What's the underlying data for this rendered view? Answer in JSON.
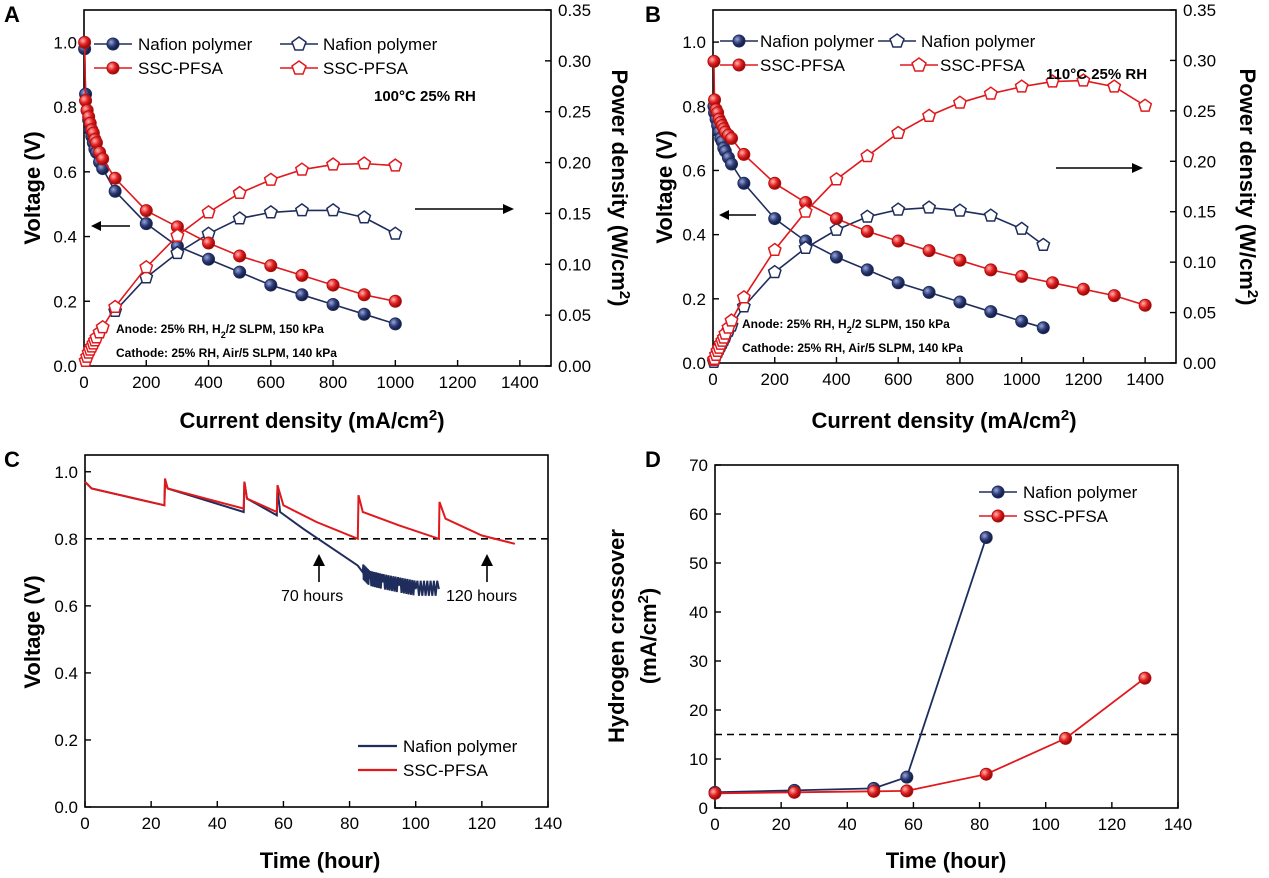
{
  "colors": {
    "nafion": "#1f2d5c",
    "ssc": "#e0191d",
    "axis": "#000000"
  },
  "panels": {
    "A": {
      "letter": "A",
      "condition": "100°C 25% RH",
      "anode": {
        "pre": "Anode: 25% RH, H",
        "sub": "2",
        "post": "/2 SLPM, 150 kPa"
      },
      "cathode": "Cathode: 25% RH, Air/5 SLPM, 140 kPa",
      "legend": [
        "Nafion polymer",
        "Nafion polymer",
        "SSC-PFSA",
        "SSC-PFSA"
      ]
    },
    "B": {
      "letter": "B",
      "condition": "110°C 25% RH",
      "anode": {
        "pre": "Anode: 25% RH, H",
        "sub": "2",
        "post": "/2 SLPM, 150 kPa"
      },
      "cathode": "Cathode: 25% RH, Air/5 SLPM, 140 kPa",
      "legend": [
        "Nafion polymer",
        "Nafion polymer",
        "SSC-PFSA",
        "SSC-PFSA"
      ]
    },
    "C": {
      "letter": "C",
      "annot70": "70 hours",
      "annot120": "120 hours",
      "legend": [
        "Nafion polymer",
        "SSC-PFSA"
      ]
    },
    "D": {
      "letter": "D",
      "legend": [
        "Nafion polymer",
        "SSC-PFSA"
      ]
    }
  },
  "chart_data": [
    {
      "panel": "A",
      "type": "line",
      "condition": "100°C 25% RH",
      "xlabel": "Current density (mA/cm2)",
      "ylabel_left": "Voltage (V)",
      "ylabel_right": "Power density (W/cm2)",
      "xlim": [
        0,
        1500
      ],
      "ylim_left": [
        0,
        1.1
      ],
      "ylim_right": [
        0,
        0.35
      ],
      "x_ticks": [
        0,
        200,
        400,
        600,
        800,
        1000,
        1200,
        1400
      ],
      "y_ticks_left": [
        0.0,
        0.2,
        0.4,
        0.6,
        0.8,
        1.0
      ],
      "y_ticks_right": [
        0.0,
        0.05,
        0.1,
        0.15,
        0.2,
        0.25,
        0.3,
        0.35
      ],
      "series": [
        {
          "name": "Nafion polymer",
          "quantity": "voltage",
          "axis": "left",
          "marker": "circle",
          "x": [
            2,
            5,
            10,
            15,
            20,
            25,
            30,
            35,
            40,
            50,
            60,
            100,
            200,
            300,
            400,
            500,
            600,
            700,
            800,
            900,
            1000
          ],
          "y": [
            0.98,
            0.84,
            0.79,
            0.76,
            0.73,
            0.71,
            0.69,
            0.67,
            0.66,
            0.63,
            0.61,
            0.54,
            0.44,
            0.37,
            0.33,
            0.29,
            0.25,
            0.22,
            0.19,
            0.16,
            0.13
          ]
        },
        {
          "name": "Nafion polymer",
          "quantity": "power",
          "axis": "right",
          "marker": "pentagon",
          "x": [
            100,
            200,
            300,
            400,
            500,
            600,
            700,
            800,
            900,
            1000
          ],
          "y": [
            0.054,
            0.087,
            0.111,
            0.13,
            0.145,
            0.151,
            0.153,
            0.153,
            0.146,
            0.13
          ]
        },
        {
          "name": "SSC-PFSA",
          "quantity": "voltage",
          "axis": "left",
          "marker": "circle",
          "x": [
            2,
            5,
            10,
            15,
            20,
            25,
            30,
            35,
            40,
            50,
            60,
            100,
            200,
            300,
            400,
            500,
            600,
            700,
            800,
            900,
            1000
          ],
          "y": [
            1.0,
            0.82,
            0.79,
            0.77,
            0.75,
            0.73,
            0.72,
            0.7,
            0.69,
            0.66,
            0.64,
            0.58,
            0.48,
            0.43,
            0.38,
            0.34,
            0.31,
            0.28,
            0.25,
            0.22,
            0.2
          ]
        },
        {
          "name": "SSC-PFSA",
          "quantity": "power",
          "axis": "right",
          "marker": "pentagon",
          "x": [
            5,
            10,
            15,
            20,
            25,
            30,
            35,
            40,
            50,
            60,
            100,
            200,
            300,
            400,
            500,
            600,
            700,
            800,
            900,
            1000
          ],
          "y": [
            0.005,
            0.009,
            0.013,
            0.016,
            0.019,
            0.022,
            0.025,
            0.028,
            0.033,
            0.038,
            0.058,
            0.097,
            0.128,
            0.151,
            0.17,
            0.183,
            0.193,
            0.198,
            0.199,
            0.197
          ]
        }
      ]
    },
    {
      "panel": "B",
      "type": "line",
      "condition": "110°C 25% RH",
      "xlabel": "Current density (mA/cm2)",
      "ylabel_left": "Voltage (V)",
      "ylabel_right": "Power density (W/cm2)",
      "xlim": [
        0,
        1500
      ],
      "ylim_left": [
        0,
        1.1
      ],
      "ylim_right": [
        0,
        0.35
      ],
      "x_ticks": [
        0,
        200,
        400,
        600,
        800,
        1000,
        1200,
        1400
      ],
      "y_ticks_left": [
        0.0,
        0.2,
        0.4,
        0.6,
        0.8,
        1.0
      ],
      "y_ticks_right": [
        0.0,
        0.05,
        0.1,
        0.15,
        0.2,
        0.25,
        0.3,
        0.35
      ],
      "series": [
        {
          "name": "Nafion polymer",
          "quantity": "voltage",
          "axis": "left",
          "marker": "circle",
          "x": [
            3,
            5,
            10,
            15,
            20,
            25,
            30,
            35,
            40,
            50,
            60,
            100,
            200,
            300,
            400,
            500,
            600,
            700,
            800,
            900,
            1000,
            1070
          ],
          "y": [
            0.8,
            0.78,
            0.76,
            0.74,
            0.72,
            0.7,
            0.69,
            0.67,
            0.66,
            0.64,
            0.62,
            0.56,
            0.45,
            0.38,
            0.33,
            0.29,
            0.25,
            0.22,
            0.19,
            0.16,
            0.13,
            0.11
          ]
        },
        {
          "name": "Nafion polymer",
          "quantity": "power",
          "axis": "right",
          "marker": "pentagon",
          "x": [
            3,
            5,
            10,
            15,
            20,
            25,
            30,
            35,
            40,
            50,
            60,
            100,
            200,
            300,
            400,
            500,
            600,
            700,
            800,
            900,
            1000,
            1070
          ],
          "y": [
            0.001,
            0.004,
            0.008,
            0.011,
            0.014,
            0.017,
            0.02,
            0.023,
            0.026,
            0.032,
            0.037,
            0.056,
            0.09,
            0.114,
            0.132,
            0.145,
            0.152,
            0.154,
            0.151,
            0.146,
            0.133,
            0.117
          ]
        },
        {
          "name": "SSC-PFSA",
          "quantity": "voltage",
          "axis": "left",
          "marker": "circle",
          "x": [
            3,
            5,
            10,
            15,
            20,
            25,
            30,
            35,
            40,
            50,
            60,
            100,
            200,
            300,
            400,
            500,
            600,
            700,
            800,
            900,
            1000,
            1100,
            1200,
            1300,
            1400
          ],
          "y": [
            0.94,
            0.82,
            0.79,
            0.78,
            0.76,
            0.75,
            0.74,
            0.73,
            0.72,
            0.71,
            0.7,
            0.65,
            0.56,
            0.5,
            0.45,
            0.41,
            0.38,
            0.35,
            0.32,
            0.29,
            0.27,
            0.25,
            0.23,
            0.21,
            0.18
          ]
        },
        {
          "name": "SSC-PFSA",
          "quantity": "power",
          "axis": "right",
          "marker": "pentagon",
          "x": [
            3,
            5,
            10,
            15,
            20,
            25,
            30,
            35,
            40,
            50,
            60,
            100,
            200,
            300,
            400,
            500,
            600,
            700,
            800,
            900,
            1000,
            1100,
            1200,
            1300,
            1400
          ],
          "y": [
            0.003,
            0.004,
            0.008,
            0.012,
            0.015,
            0.019,
            0.022,
            0.025,
            0.029,
            0.035,
            0.042,
            0.065,
            0.112,
            0.15,
            0.182,
            0.205,
            0.228,
            0.245,
            0.258,
            0.267,
            0.274,
            0.279,
            0.28,
            0.274,
            0.255
          ]
        }
      ]
    },
    {
      "panel": "C",
      "type": "line",
      "xlabel": "Time (hour)",
      "ylabel": "Voltage (V)",
      "xlim": [
        0,
        140
      ],
      "ylim": [
        0,
        1.05
      ],
      "x_ticks": [
        0,
        20,
        40,
        60,
        80,
        100,
        120,
        140
      ],
      "y_ticks": [
        0.0,
        0.2,
        0.4,
        0.6,
        0.8,
        1.0
      ],
      "reference_line_y": 0.8,
      "annotations": [
        {
          "text": "70 hours",
          "x": 70
        },
        {
          "text": "120 hours",
          "x": 120
        }
      ],
      "series": [
        {
          "name": "Nafion polymer",
          "x": [
            0,
            2,
            24,
            24.2,
            25,
            48,
            48.2,
            49,
            58,
            58.2,
            59,
            66,
            72,
            78,
            82.5,
            84,
            86,
            90,
            95,
            100,
            107
          ],
          "y": [
            0.97,
            0.95,
            0.9,
            0.97,
            0.95,
            0.88,
            0.97,
            0.92,
            0.87,
            0.95,
            0.88,
            0.83,
            0.79,
            0.75,
            0.72,
            0.7,
            0.68,
            0.67,
            0.66,
            0.65,
            0.65
          ]
        },
        {
          "name": "SSC-PFSA",
          "x": [
            0,
            2,
            24,
            24.2,
            25,
            48,
            48.2,
            49,
            58,
            58.2,
            60,
            70,
            82.5,
            82.7,
            84,
            95,
            107,
            107.2,
            109,
            120,
            130
          ],
          "y": [
            0.97,
            0.95,
            0.9,
            0.98,
            0.95,
            0.89,
            0.97,
            0.92,
            0.88,
            0.96,
            0.9,
            0.85,
            0.8,
            0.93,
            0.88,
            0.84,
            0.8,
            0.91,
            0.86,
            0.81,
            0.785
          ]
        }
      ]
    },
    {
      "panel": "D",
      "type": "line",
      "xlabel": "Time (hour)",
      "ylabel": "Hydrogen crossover (mA/cm2)",
      "xlim": [
        0,
        140
      ],
      "ylim": [
        0,
        70
      ],
      "x_ticks": [
        0,
        20,
        40,
        60,
        80,
        100,
        120,
        140
      ],
      "y_ticks": [
        0,
        10,
        20,
        30,
        40,
        50,
        60,
        70
      ],
      "reference_line_y": 15,
      "series": [
        {
          "name": "Nafion polymer",
          "x": [
            0,
            24,
            48,
            58,
            82
          ],
          "y": [
            3.2,
            3.6,
            4.0,
            6.3,
            55.2
          ]
        },
        {
          "name": "SSC-PFSA",
          "x": [
            0,
            24,
            48,
            58,
            82,
            106,
            130
          ],
          "y": [
            3.0,
            3.2,
            3.4,
            3.5,
            6.9,
            14.2,
            26.5
          ]
        }
      ]
    }
  ]
}
